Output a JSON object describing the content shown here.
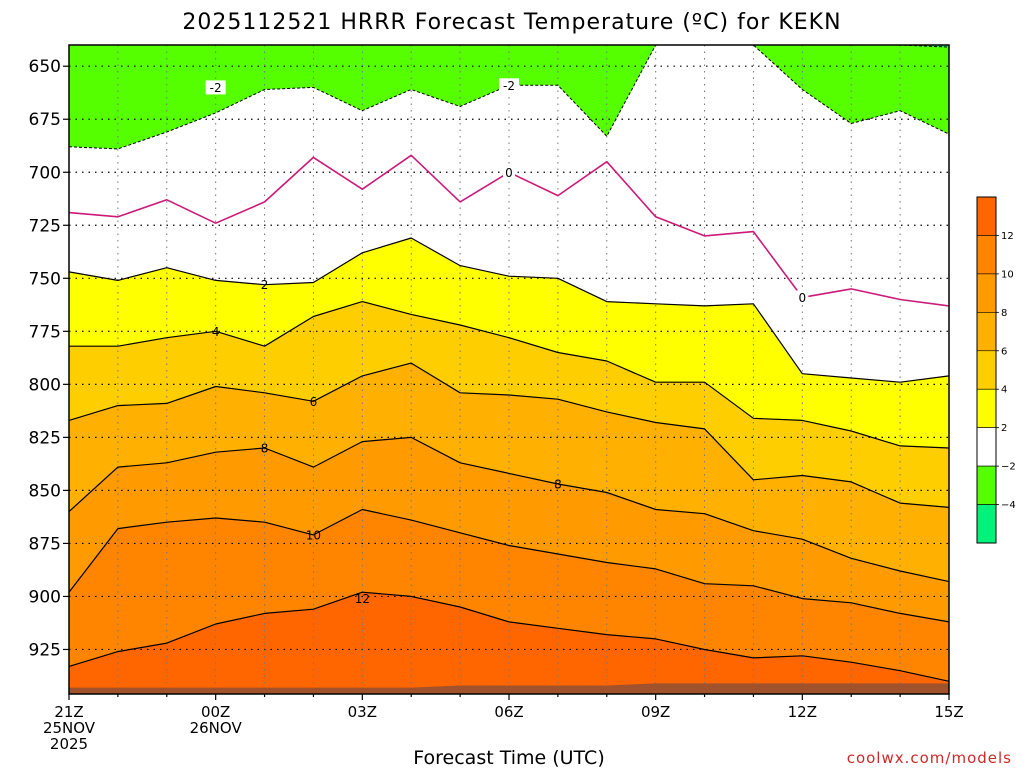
{
  "chart_data": {
    "type": "heatmap",
    "title": "2025112521 HRRR Forecast Temperature (ºC) for KEKN",
    "xlabel": "Forecast Time (UTC)",
    "ylabel": "",
    "credit": "coolwx.com/models",
    "x_hours": [
      0,
      1,
      2,
      3,
      4,
      5,
      6,
      7,
      8,
      9,
      10,
      11,
      12,
      13,
      14,
      15,
      16,
      17,
      18
    ],
    "xlim": [
      0,
      18
    ],
    "x_ticks": [
      {
        "hour": 0,
        "lines": [
          "21Z",
          "25NOV",
          "2025"
        ]
      },
      {
        "hour": 3,
        "lines": [
          "00Z",
          "26NOV"
        ]
      },
      {
        "hour": 6,
        "lines": [
          "03Z"
        ]
      },
      {
        "hour": 9,
        "lines": [
          "06Z"
        ]
      },
      {
        "hour": 12,
        "lines": [
          "09Z"
        ]
      },
      {
        "hour": 15,
        "lines": [
          "12Z"
        ]
      },
      {
        "hour": 18,
        "lines": [
          "15Z"
        ]
      }
    ],
    "y_ticks": [
      650,
      675,
      700,
      725,
      750,
      775,
      800,
      825,
      850,
      875,
      900,
      925
    ],
    "ylim": [
      640,
      946
    ],
    "y_reversed": true,
    "grid": true,
    "terrain_pressure": [
      943,
      943,
      943,
      943,
      943,
      943,
      943,
      943,
      942,
      942,
      942,
      942,
      941,
      941,
      941,
      941,
      941,
      941,
      941
    ],
    "contour_levels": [
      -4,
      -2,
      0,
      2,
      4,
      6,
      8,
      10,
      12
    ],
    "contours": [
      {
        "level": -4,
        "p": [
          640,
          640,
          640,
          640,
          640,
          640,
          640,
          640,
          640,
          640,
          640,
          640,
          640,
          640,
          640,
          640,
          640,
          640,
          641
        ]
      },
      {
        "level": -2,
        "p": [
          688,
          689,
          681,
          672,
          661,
          660,
          671,
          661,
          669,
          659,
          659,
          683,
          640,
          640,
          640,
          661,
          677,
          671,
          682
        ]
      },
      {
        "level": 0,
        "p": [
          719,
          721,
          713,
          724,
          714,
          693,
          708,
          692,
          714,
          700,
          711,
          695,
          721,
          730,
          728,
          759,
          755,
          760,
          763
        ]
      },
      {
        "level": 2,
        "p": [
          747,
          751,
          745,
          751,
          753,
          752,
          738,
          731,
          744,
          749,
          750,
          761,
          762,
          763,
          762,
          795,
          797,
          799,
          796
        ]
      },
      {
        "level": 4,
        "p": [
          782,
          782,
          778,
          775,
          782,
          768,
          761,
          767,
          772,
          778,
          785,
          789,
          799,
          799,
          816,
          817,
          822,
          829,
          830
        ]
      },
      {
        "level": 6,
        "p": [
          817,
          810,
          809,
          801,
          804,
          808,
          796,
          790,
          804,
          805,
          807,
          813,
          818,
          821,
          845,
          843,
          846,
          856,
          858
        ]
      },
      {
        "level": 8,
        "p": [
          860,
          839,
          837,
          832,
          830,
          839,
          827,
          825,
          837,
          842,
          847,
          851,
          859,
          861,
          869,
          873,
          882,
          888,
          893
        ]
      },
      {
        "level": 10,
        "p": [
          898,
          868,
          865,
          863,
          865,
          871,
          859,
          864,
          870,
          876,
          880,
          884,
          887,
          894,
          895,
          901,
          903,
          908,
          912
        ]
      },
      {
        "level": 12,
        "p": [
          933,
          926,
          922,
          913,
          908,
          906,
          898,
          900,
          905,
          912,
          915,
          918,
          920,
          925,
          929,
          928,
          931,
          935,
          940
        ]
      }
    ],
    "contour_labels": [
      {
        "level": -2,
        "text": "-2",
        "hour": 3,
        "p": 660
      },
      {
        "level": -2,
        "text": "-2",
        "hour": 9,
        "p": 659
      },
      {
        "level": 0,
        "text": "0",
        "hour": 9,
        "p": 700
      },
      {
        "level": 0,
        "text": "0",
        "hour": 15,
        "p": 759
      },
      {
        "level": 2,
        "text": "2",
        "hour": 4,
        "p": 753
      },
      {
        "level": 4,
        "text": "4",
        "hour": 3,
        "p": 775
      },
      {
        "level": 6,
        "text": "6",
        "hour": 5,
        "p": 808
      },
      {
        "level": 8,
        "text": "8",
        "hour": 4,
        "p": 830
      },
      {
        "level": 8,
        "text": "8",
        "hour": 10,
        "p": 847
      },
      {
        "level": 10,
        "text": "10",
        "hour": 5,
        "p": 871
      },
      {
        "level": 12,
        "text": "12",
        "hour": 6,
        "p": 901
      }
    ],
    "legend": {
      "placement": "right",
      "ticks": [
        "12",
        "10",
        "8",
        "6",
        "4",
        "2",
        "−2",
        "−4"
      ],
      "bins": [
        {
          "min": 12,
          "max": 14,
          "color": "#ff6600"
        },
        {
          "min": 10,
          "max": 12,
          "color": "#ff8500"
        },
        {
          "min": 8,
          "max": 10,
          "color": "#ff9a00"
        },
        {
          "min": 6,
          "max": 8,
          "color": "#ffb000"
        },
        {
          "min": 4,
          "max": 6,
          "color": "#ffce00"
        },
        {
          "min": 2,
          "max": 4,
          "color": "#ffff00"
        },
        {
          "min": -2,
          "max": 2,
          "color": "#ffffff"
        },
        {
          "min": -4,
          "max": -2,
          "color": "#55ff00"
        },
        {
          "min": -6,
          "max": -4,
          "color": "#00f27a"
        }
      ]
    },
    "colors": {
      "above_12": "#ff6600",
      "10_12": "#ff8500",
      "8_10": "#ff9a00",
      "6_8": "#ffb000",
      "4_6": "#ffce00",
      "2_4": "#ffff00",
      "m2_2": "#ffffff",
      "m4_m2": "#55ff00",
      "below_m4": "#00f27a",
      "terrain": "#a0522d",
      "zero_line": "#cc1a7a"
    }
  }
}
